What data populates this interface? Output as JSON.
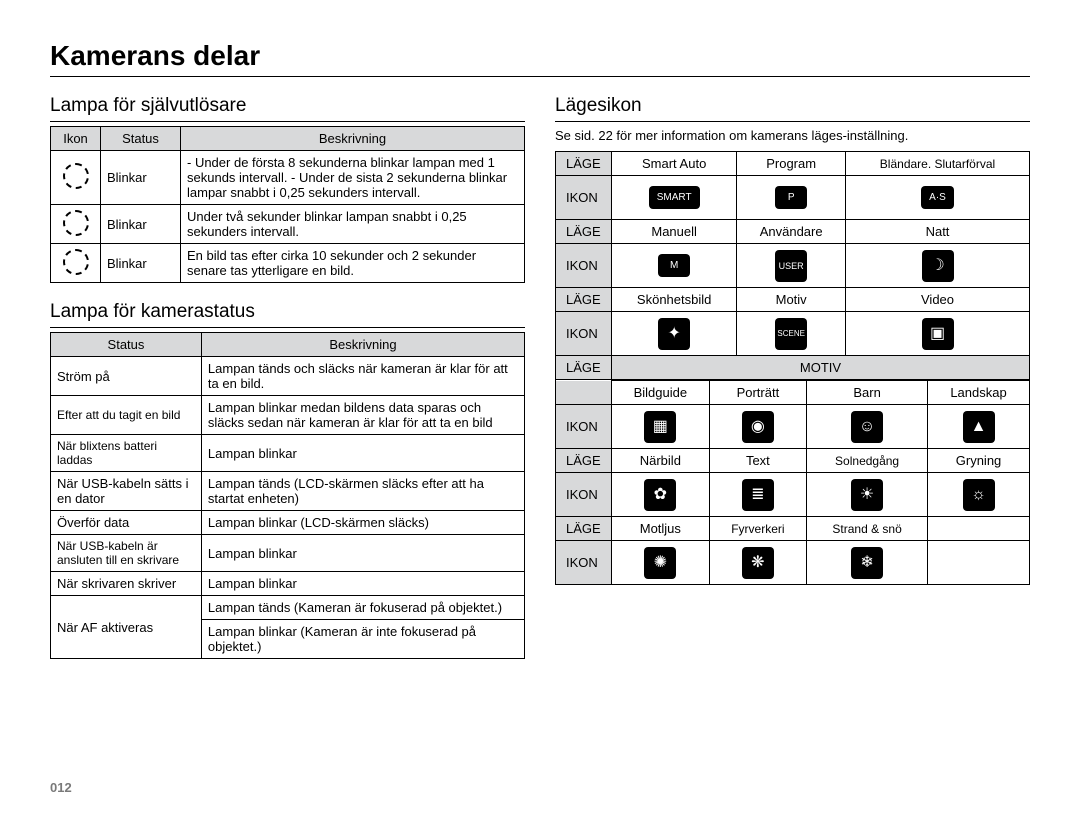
{
  "page_title": "Kamerans delar",
  "page_number": "012",
  "colors": {
    "header_bg": "#d8d9da",
    "border": "#000000",
    "background": "#ffffff",
    "pagenum": "#7a7a7a"
  },
  "left": {
    "section1": {
      "title": "Lampa för självutlösare",
      "headers": [
        "Ikon",
        "Status",
        "Beskrivning"
      ],
      "rows": [
        {
          "icon": "timer-10",
          "status": "Blinkar",
          "desc": "- Under de första 8 sekunderna blinkar lampan med 1 sekunds intervall.\n- Under de sista 2 sekunderna blinkar lampar snabbt i 0,25 sekunders intervall."
        },
        {
          "icon": "timer-2",
          "status": "Blinkar",
          "desc": "Under två sekunder blinkar lampan snabbt i 0,25 sekunders intervall."
        },
        {
          "icon": "timer-double",
          "status": "Blinkar",
          "desc": "En bild tas efter cirka 10 sekunder och 2 sekunder senare tas ytterligare en bild."
        }
      ]
    },
    "section2": {
      "title": "Lampa för kamerastatus",
      "headers": [
        "Status",
        "Beskrivning"
      ],
      "rows": [
        {
          "status": "Ström på",
          "desc": "Lampan tänds och släcks när kameran är klar för att ta en bild."
        },
        {
          "status": "Efter att du tagit en bild",
          "desc": "Lampan blinkar medan bildens data sparas och släcks sedan när kameran är klar för att ta en bild"
        },
        {
          "status": "När blixtens batteri laddas",
          "desc": "Lampan blinkar"
        },
        {
          "status": "När USB-kabeln sätts i en dator",
          "desc": "Lampan tänds\n(LCD-skärmen släcks efter att ha startat enheten)"
        },
        {
          "status": "Överför data",
          "desc": "Lampan blinkar (LCD-skärmen släcks)"
        },
        {
          "status": "När USB-kabeln är ansluten till en skrivare",
          "desc": "Lampan blinkar"
        },
        {
          "status": "När skrivaren skriver",
          "desc": "Lampan blinkar"
        },
        {
          "status": "När AF aktiveras",
          "desc_a": "Lampan tänds (Kameran är fokuserad på objektet.)",
          "desc_b": "Lampan blinkar (Kameran är inte fokuserad på objektet.)",
          "rowspan": true
        }
      ]
    }
  },
  "right": {
    "title": "Lägesikon",
    "note": "Se sid. 22 för mer information om kamerans läges-inställning.",
    "label_lage": "LÄGE",
    "label_ikon": "IKON",
    "motiv_header": "MOTIV",
    "group1": {
      "row1": [
        "Smart Auto",
        "Program",
        "Bländare. Slutarförval"
      ],
      "icons1": [
        "SMART",
        "P",
        "A·S"
      ],
      "row2": [
        "Manuell",
        "Användare",
        "Natt"
      ],
      "icons2": [
        "M",
        "USER",
        "☽"
      ],
      "row3": [
        "Skönhetsbild",
        "Motiv",
        "Video"
      ],
      "icons3": [
        "✦",
        "SCENE",
        "▣"
      ]
    },
    "group2": {
      "row1": [
        "Bildguide",
        "Porträtt",
        "Barn",
        "Landskap"
      ],
      "icons1": [
        "▦",
        "◉",
        "☺",
        "▲"
      ],
      "row2": [
        "Närbild",
        "Text",
        "Solnedgång",
        "Gryning"
      ],
      "icons2": [
        "✿",
        "≣",
        "☀",
        "☼"
      ],
      "row3": [
        "Motljus",
        "Fyrverkeri",
        "Strand & snö",
        ""
      ],
      "icons3": [
        "✺",
        "❋",
        "❄",
        ""
      ]
    }
  }
}
